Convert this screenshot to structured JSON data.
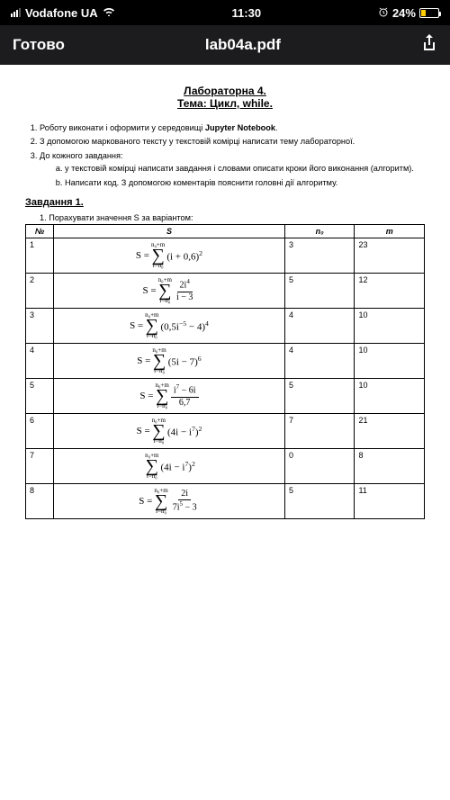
{
  "statusBar": {
    "carrier": "Vodafone UA",
    "time": "11:30",
    "batteryPct": "24%"
  },
  "navBar": {
    "done": "Готово",
    "title": "lab04a.pdf"
  },
  "doc": {
    "title": "Лабораторна 4.",
    "subtitle": "Тема: Цикл, while.",
    "instructions": [
      "Роботу виконати і оформити у середовищі Jupyter Notebook.",
      "З допомогою маркованого тексту у текстовій комірці написати тему лабораторної.",
      "До кожного завдання:"
    ],
    "bold_in_1": "Jupyter Notebook",
    "subInstructions": [
      "у текстовій комірці написати завдання і словами описати кроки його виконання (алгоритм).",
      "Написати код. З допомогою коментарів пояснити головні дії алгоритму."
    ],
    "task1": {
      "heading": "Завдання 1.",
      "line": "1.   Порахувати значення S за варіантом:"
    },
    "table": {
      "headers": [
        "№",
        "S",
        "n₀",
        "m"
      ],
      "rows": [
        {
          "num": "1",
          "top": "n₀+m",
          "bot": "i=n₀",
          "body_html": "(i + 0,6)<sup>2</sup>",
          "has_frac": false,
          "n0": "3",
          "m": "23",
          "prefix": "S = "
        },
        {
          "num": "2",
          "top": "n₀+m",
          "bot": "i=n₀",
          "frac_top": "2i<sup>4</sup>",
          "frac_bot": "i − 3",
          "has_frac": true,
          "n0": "5",
          "m": "12",
          "prefix": "S = "
        },
        {
          "num": "3",
          "top": "n₀+m",
          "bot": "i=n₀",
          "body_html": "(0,5i<sup>−5</sup> − 4)<sup>4</sup>",
          "has_frac": false,
          "n0": "4",
          "m": "10",
          "prefix": "S = "
        },
        {
          "num": "4",
          "top": "n₀+m",
          "bot": "i=n₀",
          "body_html": "(5i − 7)<sup>6</sup>",
          "has_frac": false,
          "n0": "4",
          "m": "10",
          "prefix": "S = "
        },
        {
          "num": "5",
          "top": "n₀+m",
          "bot": "i=n₀",
          "frac_top": "i<sup>7</sup> − 6i",
          "frac_bot": "6,7",
          "has_frac": true,
          "n0": "5",
          "m": "10",
          "prefix": "S = "
        },
        {
          "num": "6",
          "top": "n₀+m",
          "bot": "i=n₀",
          "body_html": "(4i − i<sup>7</sup>)<sup>2</sup>",
          "has_frac": false,
          "n0": "7",
          "m": "21",
          "prefix": "S = "
        },
        {
          "num": "7",
          "top": "n₀+m",
          "bot": "i=n₀",
          "body_html": "(4i − i<sup>7</sup>)<sup>2</sup>",
          "has_frac": false,
          "n0": "0",
          "m": "8",
          "prefix": ""
        },
        {
          "num": "8",
          "top": "n₀+m",
          "bot": "i=n₀",
          "frac_top": "2i",
          "frac_bot": "7i<sup>5</sup> − 3",
          "has_frac": true,
          "n0": "5",
          "m": "11",
          "prefix": "S = "
        }
      ]
    }
  }
}
